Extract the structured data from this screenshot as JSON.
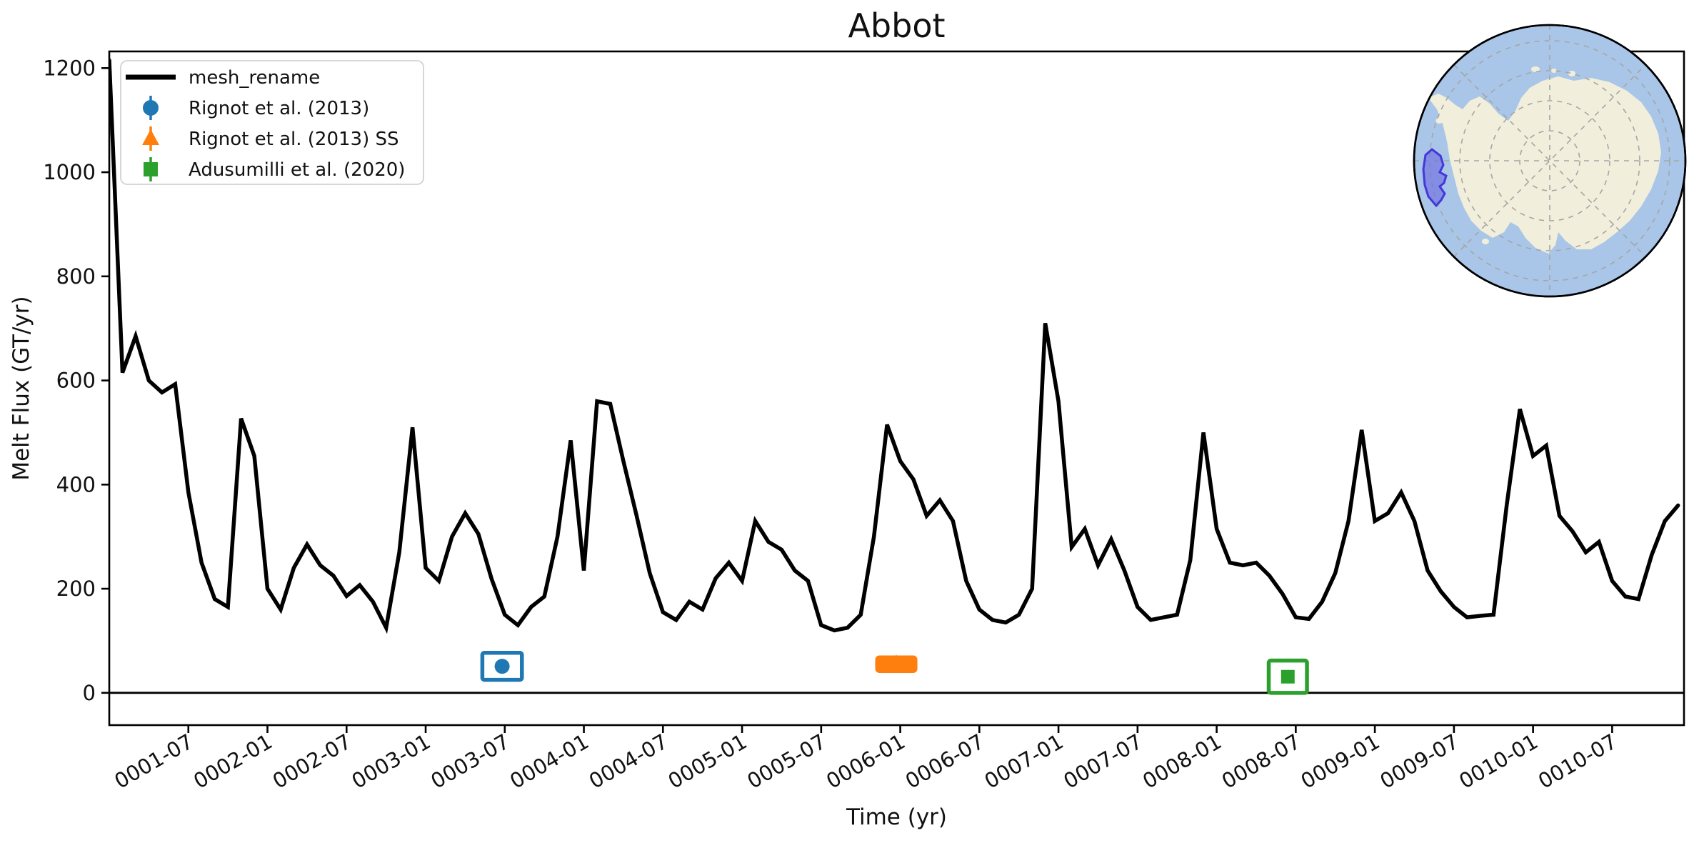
{
  "title": "Abbot",
  "axes": {
    "xlabel": "Time (yr)",
    "ylabel": "Melt Flux (GT/yr)",
    "y_ticks": [
      0,
      200,
      400,
      600,
      800,
      1000,
      1200
    ],
    "x_tick_months": [
      6,
      12,
      18,
      24,
      30,
      36,
      42,
      48,
      54,
      60,
      66,
      72,
      78,
      84,
      90,
      96,
      102,
      108,
      114
    ],
    "x_tick_labels": [
      "0001-07",
      "0002-01",
      "0002-07",
      "0003-01",
      "0003-07",
      "0004-01",
      "0004-07",
      "0005-01",
      "0005-07",
      "0006-01",
      "0006-07",
      "0007-01",
      "0007-07",
      "0008-01",
      "0008-07",
      "0009-01",
      "0009-07",
      "0010-01",
      "0010-07"
    ]
  },
  "chart_data": {
    "type": "line",
    "title": "Abbot",
    "xlabel": "Time (yr)",
    "ylabel": "Melt Flux (GT/yr)",
    "x_units": "months since 0001-01, monthly samples",
    "xlim_months": [
      0,
      119.45
    ],
    "ylim": [
      -62,
      1232
    ],
    "zero_line": 0,
    "grid": false,
    "legend_position": "upper left",
    "series": [
      {
        "name": "mesh_rename",
        "color": "#000000",
        "line_width": 5.5,
        "start": "0001-01",
        "cadence": "monthly",
        "values": [
          1215,
          615,
          685,
          600,
          577,
          593,
          385,
          250,
          180,
          165,
          527,
          455,
          200,
          160,
          240,
          285,
          245,
          225,
          186,
          207,
          175,
          125,
          270,
          510,
          240,
          215,
          300,
          345,
          305,
          219,
          150,
          130,
          165,
          185,
          300,
          485,
          235,
          560,
          555,
          445,
          340,
          230,
          155,
          140,
          175,
          160,
          220,
          250,
          215,
          330,
          290,
          275,
          235,
          215,
          130,
          120,
          125,
          150,
          300,
          515,
          445,
          410,
          340,
          370,
          330,
          215,
          160,
          140,
          135,
          150,
          200,
          710,
          560,
          280,
          315,
          245,
          295,
          235,
          165,
          140,
          145,
          150,
          255,
          500,
          315,
          250,
          245,
          250,
          225,
          190,
          145,
          142,
          175,
          230,
          330,
          505,
          330,
          345,
          385,
          330,
          235,
          195,
          165,
          145,
          148,
          150,
          360,
          545,
          455,
          475,
          340,
          310,
          270,
          290,
          215,
          185,
          180,
          265,
          330,
          360
        ]
      }
    ],
    "observations": [
      {
        "name": "Rignot et al. (2013)",
        "color": "#1f77b4",
        "marker": "circle",
        "x_month": 29.8,
        "value": 51,
        "xerr_months": 1.5,
        "yerr": 26
      },
      {
        "name": "Rignot et al. (2013) SS",
        "color": "#ff7f0e",
        "marker": "triangle",
        "x_month": 59.7,
        "value": 55,
        "xerr_months": 1.45,
        "yerr": 13
      },
      {
        "name": "Adusumilli et al. (2020)",
        "color": "#2ca02c",
        "marker": "square",
        "x_month": 89.4,
        "value": 31,
        "xerr_months": 1.45,
        "yerr": 31
      }
    ]
  },
  "legend": {
    "entries": [
      {
        "label": "mesh_rename",
        "color": "#000000",
        "glyph": "line"
      },
      {
        "label": "Rignot et al. (2013)",
        "color": "#1f77b4",
        "glyph": "circle-errorbar"
      },
      {
        "label": "Rignot et al. (2013) SS",
        "color": "#ff7f0e",
        "glyph": "triangle-errorbar"
      },
      {
        "label": "Adusumilli et al. (2020)",
        "color": "#2ca02c",
        "glyph": "square-errorbar"
      }
    ]
  },
  "inset_map": {
    "description": "South polar stereographic locator map of Antarctica",
    "region_name": "Abbot",
    "ocean_color": "#a9c6e8",
    "land_color": "#f1eedb",
    "graticule_color": "#a5a5a5",
    "outline_color": "#000000",
    "region_fill": "#6a6ae0",
    "region_edge": "#4338d8",
    "region_opacity": 0.62
  }
}
